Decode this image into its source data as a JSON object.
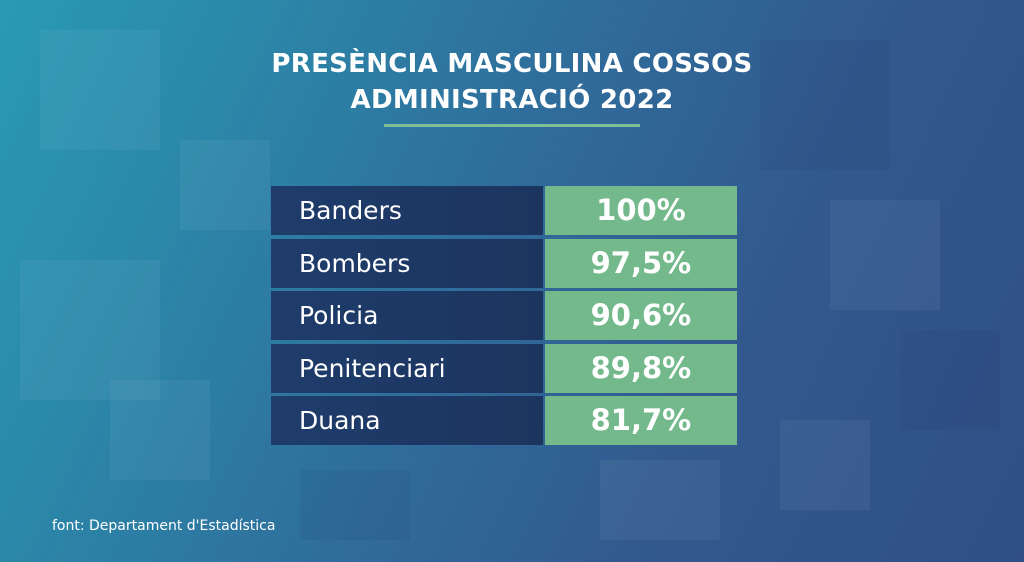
{
  "chart_data": {
    "type": "table",
    "title_lines": [
      "PRESÈNCIA MASCULINA COSSOS",
      "ADMINISTRACIÓ 2022"
    ],
    "rows": [
      {
        "label": "Banders",
        "value": 100,
        "value_text": "100%"
      },
      {
        "label": "Bombers",
        "value": 97.5,
        "value_text": "97,5%"
      },
      {
        "label": "Policia",
        "value": 90.6,
        "value_text": "90,6%"
      },
      {
        "label": "Penitenciari",
        "value": 89.8,
        "value_text": "89,8%"
      },
      {
        "label": "Duana",
        "value": 81.7,
        "value_text": "81,7%"
      }
    ],
    "source": "font: Departament d'Estadística"
  },
  "colors": {
    "label_cell": "#1f3c6b",
    "value_cell": "#74b98c",
    "title_rule": "#7fbf95",
    "text": "#ffffff"
  }
}
